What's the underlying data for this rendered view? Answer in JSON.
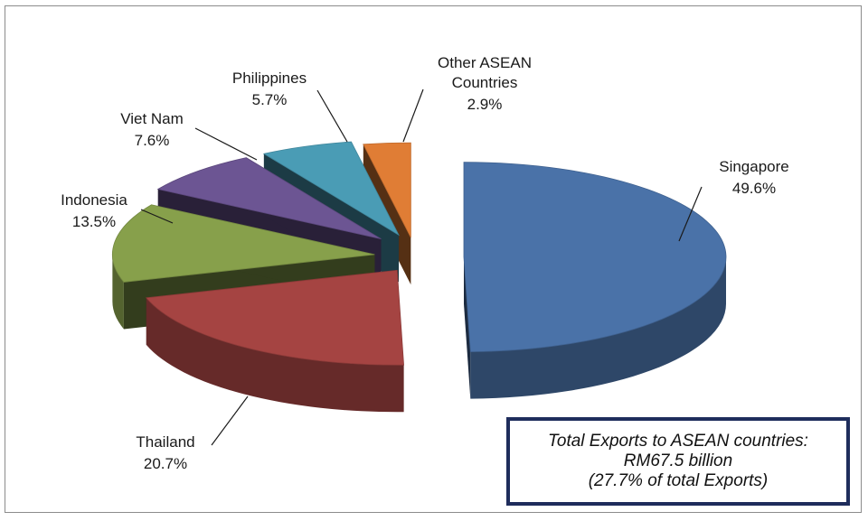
{
  "chart_data": {
    "type": "pie",
    "style": "3d-exploded",
    "slices": [
      {
        "label": "Singapore",
        "value": 49.6,
        "value_label": "49.6%",
        "color": "#4a72a8"
      },
      {
        "label": "Thailand",
        "value": 20.7,
        "value_label": "20.7%",
        "color": "#a54442"
      },
      {
        "label": "Indonesia",
        "value": 13.5,
        "value_label": "13.5%",
        "color": "#87a04b"
      },
      {
        "label": "Viet Nam",
        "value": 7.6,
        "value_label": "7.6%",
        "color": "#6c5593"
      },
      {
        "label": "Philippines",
        "value": 5.7,
        "value_label": "5.7%",
        "color": "#4a9cb5"
      },
      {
        "label": "Other ASEAN Countries",
        "label_lines": [
          "Other ASEAN",
          "Countries"
        ],
        "value": 2.9,
        "value_label": "2.9%",
        "color": "#e07d35"
      }
    ]
  },
  "note": {
    "line1": "Total Exports to ASEAN countries:",
    "line2": "RM67.5 billion",
    "line3": "(27.7% of total Exports)"
  }
}
